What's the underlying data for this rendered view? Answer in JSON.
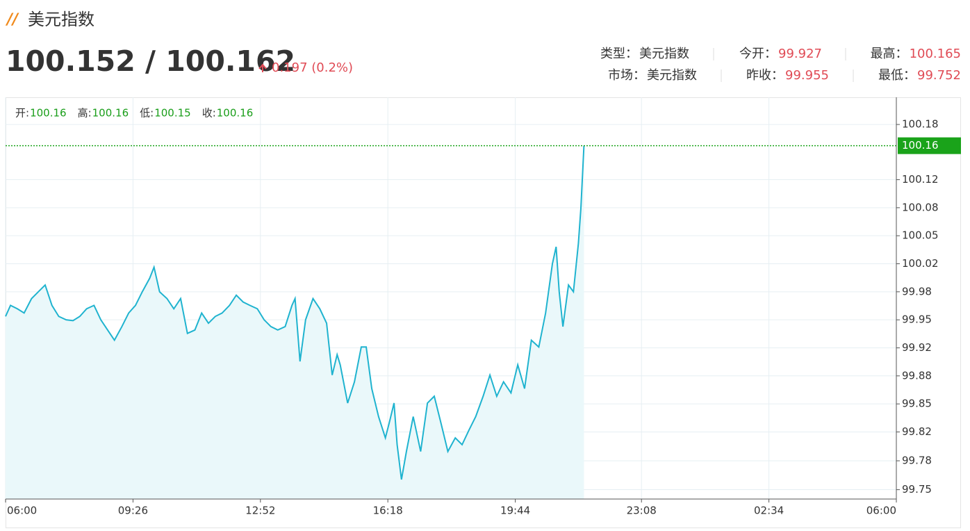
{
  "header": {
    "title": "美元指数",
    "price": "100.152 / 100.162",
    "change": "0.197 (0.2%)"
  },
  "info": [
    [
      {
        "label": "类型：",
        "value": "美元指数"
      },
      {
        "label": "今开：",
        "value": 99.927
      },
      {
        "label": "最高：",
        "value": 100.165
      }
    ],
    [
      {
        "label": "市场：",
        "value": "美元指数"
      },
      {
        "label": "昨收：",
        "value": 99.955
      },
      {
        "label": "最低：",
        "value": 99.752
      }
    ]
  ],
  "chart_data": {
    "type": "line",
    "ohlc": [
      {
        "label": "开:",
        "value": 100.16
      },
      {
        "label": "高:",
        "value": 100.16
      },
      {
        "label": "低:",
        "value": 100.15
      },
      {
        "label": "收:",
        "value": 100.16
      }
    ],
    "color": "#1fb3cf",
    "fill": "#eaf8fa",
    "grid": true,
    "xlim": [
      0,
      1440
    ],
    "xticks": [
      {
        "value": 0,
        "label": "06:00"
      },
      {
        "value": 206,
        "label": "09:26"
      },
      {
        "value": 412,
        "label": "12:52"
      },
      {
        "value": 618,
        "label": "16:18"
      },
      {
        "value": 824,
        "label": "19:44"
      },
      {
        "value": 1028,
        "label": "23:08"
      },
      {
        "value": 1234,
        "label": "02:34"
      },
      {
        "value": 1440,
        "label": "06:00"
      }
    ],
    "ylim": [
      99.739,
      100.212
    ],
    "yticks": [
      100.18,
      {
        "value": 100.115,
        "label": "100.12"
      },
      {
        "value": 100.082,
        "label": "100.08"
      },
      {
        "value": 100.049,
        "label": "100.05"
      },
      {
        "value": 100.016,
        "label": "100.02"
      },
      {
        "value": 99.983,
        "label": "99.98"
      },
      99.95,
      {
        "value": 99.917,
        "label": "99.92"
      },
      {
        "value": 99.884,
        "label": "99.88"
      },
      {
        "value": 99.851,
        "label": "99.85"
      },
      {
        "value": 99.818,
        "label": "99.82"
      },
      {
        "value": 99.784,
        "label": "99.78"
      },
      99.75
    ],
    "price_line": {
      "value": 100.155,
      "label": "100.16",
      "color": "#1aa31a"
    },
    "x": [
      0,
      8,
      19,
      30,
      42,
      53,
      64,
      75,
      86,
      98,
      109,
      120,
      131,
      143,
      154,
      165,
      176,
      188,
      199,
      210,
      221,
      233,
      240,
      249,
      261,
      272,
      283,
      294,
      306,
      317,
      328,
      339,
      350,
      362,
      373,
      384,
      395,
      407,
      418,
      429,
      440,
      452,
      463,
      468,
      476,
      485,
      497,
      508,
      519,
      528,
      536,
      541,
      553,
      564,
      575,
      583,
      592,
      603,
      614,
      620,
      628,
      633,
      640,
      648,
      659,
      671,
      682,
      693,
      704,
      715,
      727,
      738,
      749,
      760,
      772,
      783,
      794,
      805,
      817,
      828,
      839,
      850,
      862,
      873,
      884,
      890,
      895,
      901,
      910,
      918,
      926,
      930,
      935
    ],
    "values": [
      99.954,
      99.967,
      99.963,
      99.958,
      99.975,
      99.983,
      99.991,
      99.967,
      99.954,
      99.95,
      99.949,
      99.954,
      99.963,
      99.967,
      99.95,
      99.938,
      99.926,
      99.942,
      99.958,
      99.967,
      99.983,
      99.999,
      100.012,
      99.983,
      99.975,
      99.963,
      99.975,
      99.934,
      99.938,
      99.958,
      99.946,
      99.954,
      99.958,
      99.967,
      99.979,
      99.971,
      99.967,
      99.963,
      99.95,
      99.942,
      99.938,
      99.942,
      99.967,
      99.975,
      99.901,
      99.95,
      99.975,
      99.963,
      99.946,
      99.885,
      99.909,
      99.897,
      99.852,
      99.877,
      99.918,
      99.918,
      99.869,
      99.836,
      99.811,
      99.828,
      99.852,
      99.803,
      99.762,
      99.795,
      99.836,
      99.795,
      99.852,
      99.86,
      99.828,
      99.795,
      99.811,
      99.803,
      99.82,
      99.836,
      99.86,
      99.885,
      99.86,
      99.877,
      99.864,
      99.897,
      99.869,
      99.926,
      99.918,
      99.958,
      100.016,
      100.036,
      99.983,
      99.942,
      99.991,
      99.983,
      100.04,
      100.081,
      100.155
    ]
  }
}
